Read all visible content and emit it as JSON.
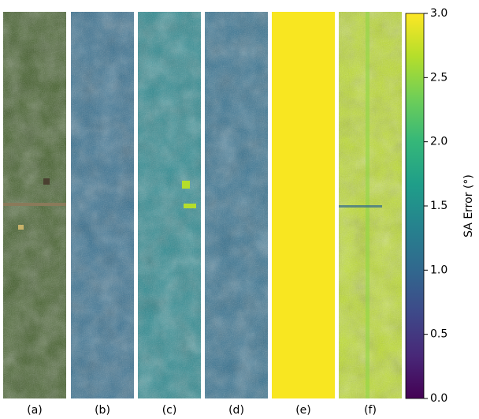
{
  "chart_data": {
    "type": "colorbar",
    "panel_labels": [
      "(a)",
      "(b)",
      "(c)",
      "(d)",
      "(e)",
      "(f)"
    ],
    "colorbar_label": "SA Error (°)",
    "colormap": [
      "#440154",
      "#482878",
      "#3e4989",
      "#31688e",
      "#26828e",
      "#1f9e89",
      "#35b779",
      "#6ece58",
      "#b5de2b",
      "#fde725"
    ],
    "ylim": [
      0,
      3
    ],
    "yticks": [
      {
        "value": 0,
        "label": "0.0"
      },
      0.5,
      {
        "value": 1,
        "label": "1.0"
      },
      1.5,
      {
        "value": 2,
        "label": "2.0"
      },
      2.5,
      {
        "value": 3,
        "label": "3.0"
      }
    ]
  }
}
